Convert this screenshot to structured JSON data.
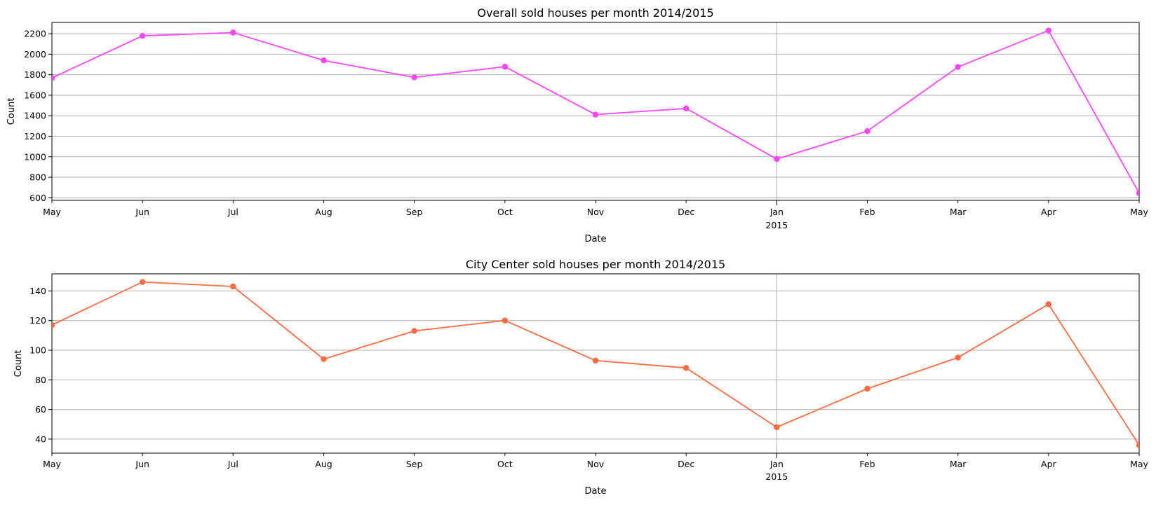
{
  "chart_data": [
    {
      "type": "line",
      "title": "Overall sold houses per month 2014/2015",
      "xlabel": "Date",
      "ylabel": "Count",
      "x": [
        "2014-05",
        "2014-06",
        "2014-07",
        "2014-08",
        "2014-09",
        "2014-10",
        "2014-11",
        "2014-12",
        "2015-01",
        "2015-02",
        "2015-03",
        "2015-04",
        "2015-05"
      ],
      "x_tick_labels": [
        "May",
        "Jun",
        "Jul",
        "Aug",
        "Sep",
        "Oct",
        "Nov",
        "Dec",
        "Jan",
        "Feb",
        "Mar",
        "Apr",
        "May"
      ],
      "x_secondary_label": "2015",
      "series": [
        {
          "values": [
            1768,
            2179,
            2211,
            1940,
            1774,
            1878,
            1411,
            1471,
            978,
            1250,
            1875,
            2231,
            646
          ],
          "color": "#ff44ff"
        }
      ],
      "ylim": [
        575,
        2310
      ],
      "yticks": [
        600,
        800,
        1000,
        1200,
        1400,
        1600,
        1800,
        2000,
        2200
      ],
      "grid": "horizontal + Jan 2015 vertical",
      "marker": "circle"
    },
    {
      "type": "line",
      "title": "City Center sold houses per month 2014/2015",
      "xlabel": "Date",
      "ylabel": "Count",
      "x": [
        "2014-05",
        "2014-06",
        "2014-07",
        "2014-08",
        "2014-09",
        "2014-10",
        "2014-11",
        "2014-12",
        "2015-01",
        "2015-02",
        "2015-03",
        "2015-04",
        "2015-05"
      ],
      "x_tick_labels": [
        "May",
        "Jun",
        "Jul",
        "Aug",
        "Sep",
        "Oct",
        "Nov",
        "Dec",
        "Jan",
        "Feb",
        "Mar",
        "Apr",
        "May"
      ],
      "x_secondary_label": "2015",
      "series": [
        {
          "values": [
            117,
            146,
            143,
            94,
            113,
            120,
            93,
            88,
            48,
            74,
            95,
            131,
            36
          ],
          "color": "#ff6a40"
        }
      ],
      "ylim": [
        30.5,
        151.5
      ],
      "yticks": [
        40,
        60,
        80,
        100,
        120,
        140
      ],
      "grid": "horizontal + Jan 2015 vertical",
      "marker": "circle"
    }
  ]
}
